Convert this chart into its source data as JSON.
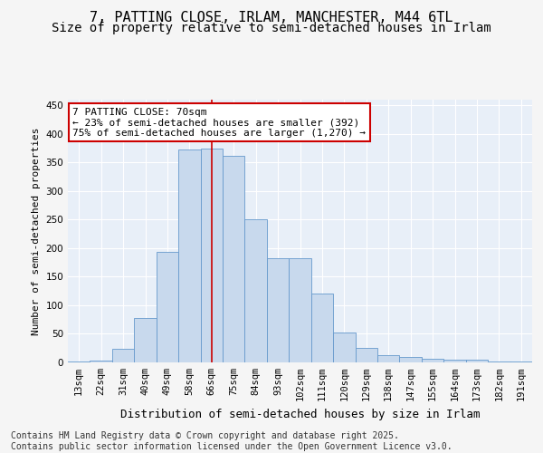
{
  "title_line1": "7, PATTING CLOSE, IRLAM, MANCHESTER, M44 6TL",
  "title_line2": "Size of property relative to semi-detached houses in Irlam",
  "xlabel": "Distribution of semi-detached houses by size in Irlam",
  "ylabel": "Number of semi-detached properties",
  "categories": [
    "13sqm",
    "22sqm",
    "31sqm",
    "40sqm",
    "49sqm",
    "58sqm",
    "66sqm",
    "75sqm",
    "84sqm",
    "93sqm",
    "102sqm",
    "111sqm",
    "120sqm",
    "129sqm",
    "138sqm",
    "147sqm",
    "155sqm",
    "164sqm",
    "173sqm",
    "182sqm",
    "191sqm"
  ],
  "values": [
    2,
    3,
    24,
    77,
    193,
    373,
    375,
    362,
    250,
    182,
    182,
    120,
    53,
    26,
    12,
    9,
    6,
    5,
    5,
    2,
    1
  ],
  "bar_color": "#c8d9ed",
  "bar_edge_color": "#6699cc",
  "vline_x": 6.0,
  "vline_color": "#cc0000",
  "annotation_title": "7 PATTING CLOSE: 70sqm",
  "annotation_line1": "← 23% of semi-detached houses are smaller (392)",
  "annotation_line2": "75% of semi-detached houses are larger (1,270) →",
  "annotation_box_facecolor": "#ffffff",
  "annotation_box_edgecolor": "#cc0000",
  "ylim": [
    0,
    460
  ],
  "yticks": [
    0,
    50,
    100,
    150,
    200,
    250,
    300,
    350,
    400,
    450
  ],
  "bg_color": "#e8eff8",
  "grid_color": "#ffffff",
  "title_fontsize": 11,
  "subtitle_fontsize": 10,
  "ylabel_fontsize": 8,
  "xlabel_fontsize": 9,
  "tick_fontsize": 7.5,
  "annotation_fontsize": 8,
  "footer_fontsize": 7,
  "footer_line1": "Contains HM Land Registry data © Crown copyright and database right 2025.",
  "footer_line2": "Contains public sector information licensed under the Open Government Licence v3.0."
}
